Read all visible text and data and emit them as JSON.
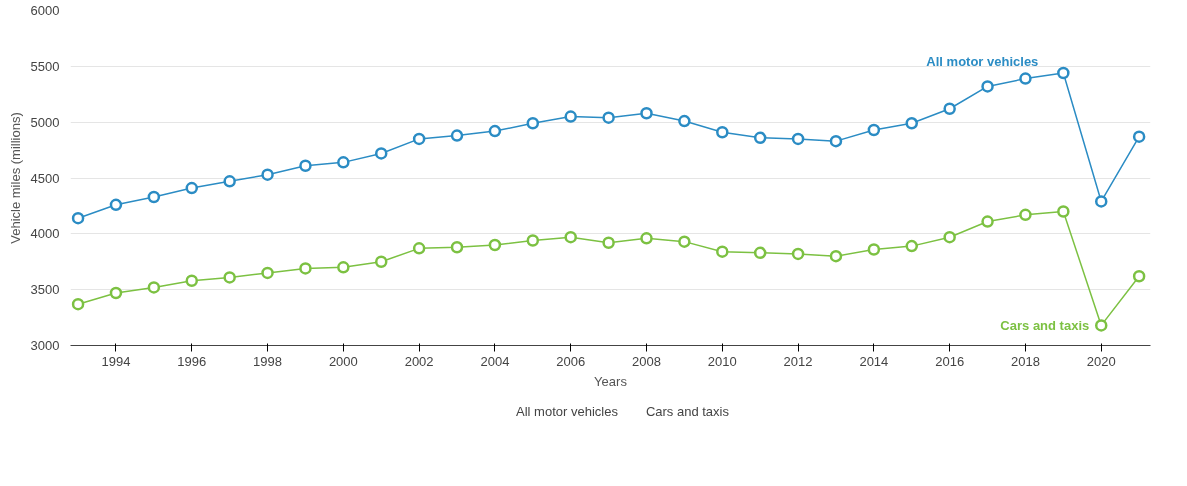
{
  "chart_data": {
    "type": "line",
    "xlabel": "Years",
    "ylabel": "Vehicle miles (millions)",
    "x": [
      1993,
      1994,
      1995,
      1996,
      1997,
      1998,
      1999,
      2000,
      2001,
      2002,
      2003,
      2004,
      2005,
      2006,
      2007,
      2008,
      2009,
      2010,
      2011,
      2012,
      2013,
      2014,
      2015,
      2016,
      2017,
      2018,
      2019,
      2020,
      2021
    ],
    "series": [
      {
        "name": "All motor vehicles",
        "color": "#2b8cc4",
        "values": [
          4140,
          4260,
          4330,
          4410,
          4470,
          4530,
          4610,
          4640,
          4720,
          4850,
          4880,
          4920,
          4990,
          5050,
          5040,
          5080,
          5010,
          4910,
          4860,
          4850,
          4830,
          4930,
          4990,
          5120,
          5320,
          5390,
          5440,
          4290,
          4870
        ]
      },
      {
        "name": "Cars and taxis",
        "color": "#7cc142",
        "values": [
          3370,
          3470,
          3520,
          3580,
          3610,
          3650,
          3690,
          3700,
          3750,
          3870,
          3880,
          3900,
          3940,
          3970,
          3920,
          3960,
          3930,
          3840,
          3830,
          3820,
          3800,
          3860,
          3890,
          3970,
          4110,
          4170,
          4200,
          3180,
          3620
        ]
      }
    ],
    "xlim": [
      1992.8,
      2021.3
    ],
    "xticks": [
      1994,
      1996,
      1998,
      2000,
      2002,
      2004,
      2006,
      2008,
      2010,
      2012,
      2014,
      2016,
      2018,
      2020
    ],
    "ylim": [
      3000,
      6000
    ],
    "yticks": [
      3000,
      3500,
      4000,
      4500,
      5000,
      5500,
      6000
    ],
    "grid": "y",
    "legend": "bottom",
    "marker": "circle",
    "line_style": "solid"
  }
}
